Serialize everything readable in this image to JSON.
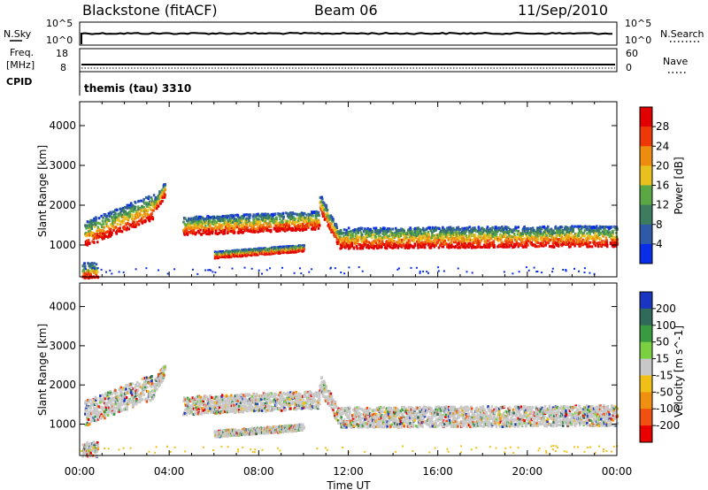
{
  "header": {
    "station": "Blackstone (fitACF)",
    "beam": "Beam 06",
    "date": "11/Sep/2010"
  },
  "status_panels": {
    "nsky_label": "N.Sky",
    "nsearch_label": "N.Search",
    "nsky_ticks": [
      "10^5",
      "10^0"
    ],
    "nsearch_ticks": [
      "10^5",
      "10^0"
    ],
    "freq_label_top": "Freq.",
    "freq_label_bottom": "[MHz]",
    "freq_ticks": [
      "18",
      "8"
    ],
    "nave_label": "Nave",
    "nave_ticks": [
      "60",
      "0"
    ],
    "cpid_label": "CPID",
    "cpid_value": "themis (tau) 3310"
  },
  "chart_data": [
    {
      "type": "heatmap",
      "name": "power",
      "ylabel": "Slant Range [km]",
      "ylim": [
        200,
        4600
      ],
      "yticks": [
        "1000",
        "2000",
        "3000",
        "4000"
      ],
      "colorbar_label": "Power [dB]",
      "colorbar_ticks": [
        "4",
        "8",
        "12",
        "16",
        "20",
        "24",
        "28"
      ],
      "colors": [
        "#0a2ee8",
        "#2f5aa8",
        "#3b7d5e",
        "#5aa845",
        "#e8c020",
        "#ee8c10",
        "#ee3808",
        "#e00000"
      ]
    },
    {
      "type": "heatmap",
      "name": "velocity",
      "ylabel": "Slant Range [km]",
      "ylim": [
        200,
        4600
      ],
      "yticks": [
        "1000",
        "2000",
        "3000",
        "4000"
      ],
      "colorbar_label": "Velocity [m s^-1]",
      "colorbar_ticks": [
        "200",
        "100",
        "50",
        "15",
        "-15",
        "-50",
        "-100",
        "-200"
      ],
      "colors": [
        "#1a36c0",
        "#2f6a5a",
        "#3a9a40",
        "#7ad040",
        "#c8c8c8",
        "#f0c018",
        "#f09010",
        "#f05010",
        "#e80000"
      ]
    }
  ],
  "xaxis": {
    "ticks": [
      "00:00",
      "04:00",
      "08:00",
      "12:00",
      "16:00",
      "20:00",
      "00:00"
    ],
    "label": "Time UT"
  }
}
